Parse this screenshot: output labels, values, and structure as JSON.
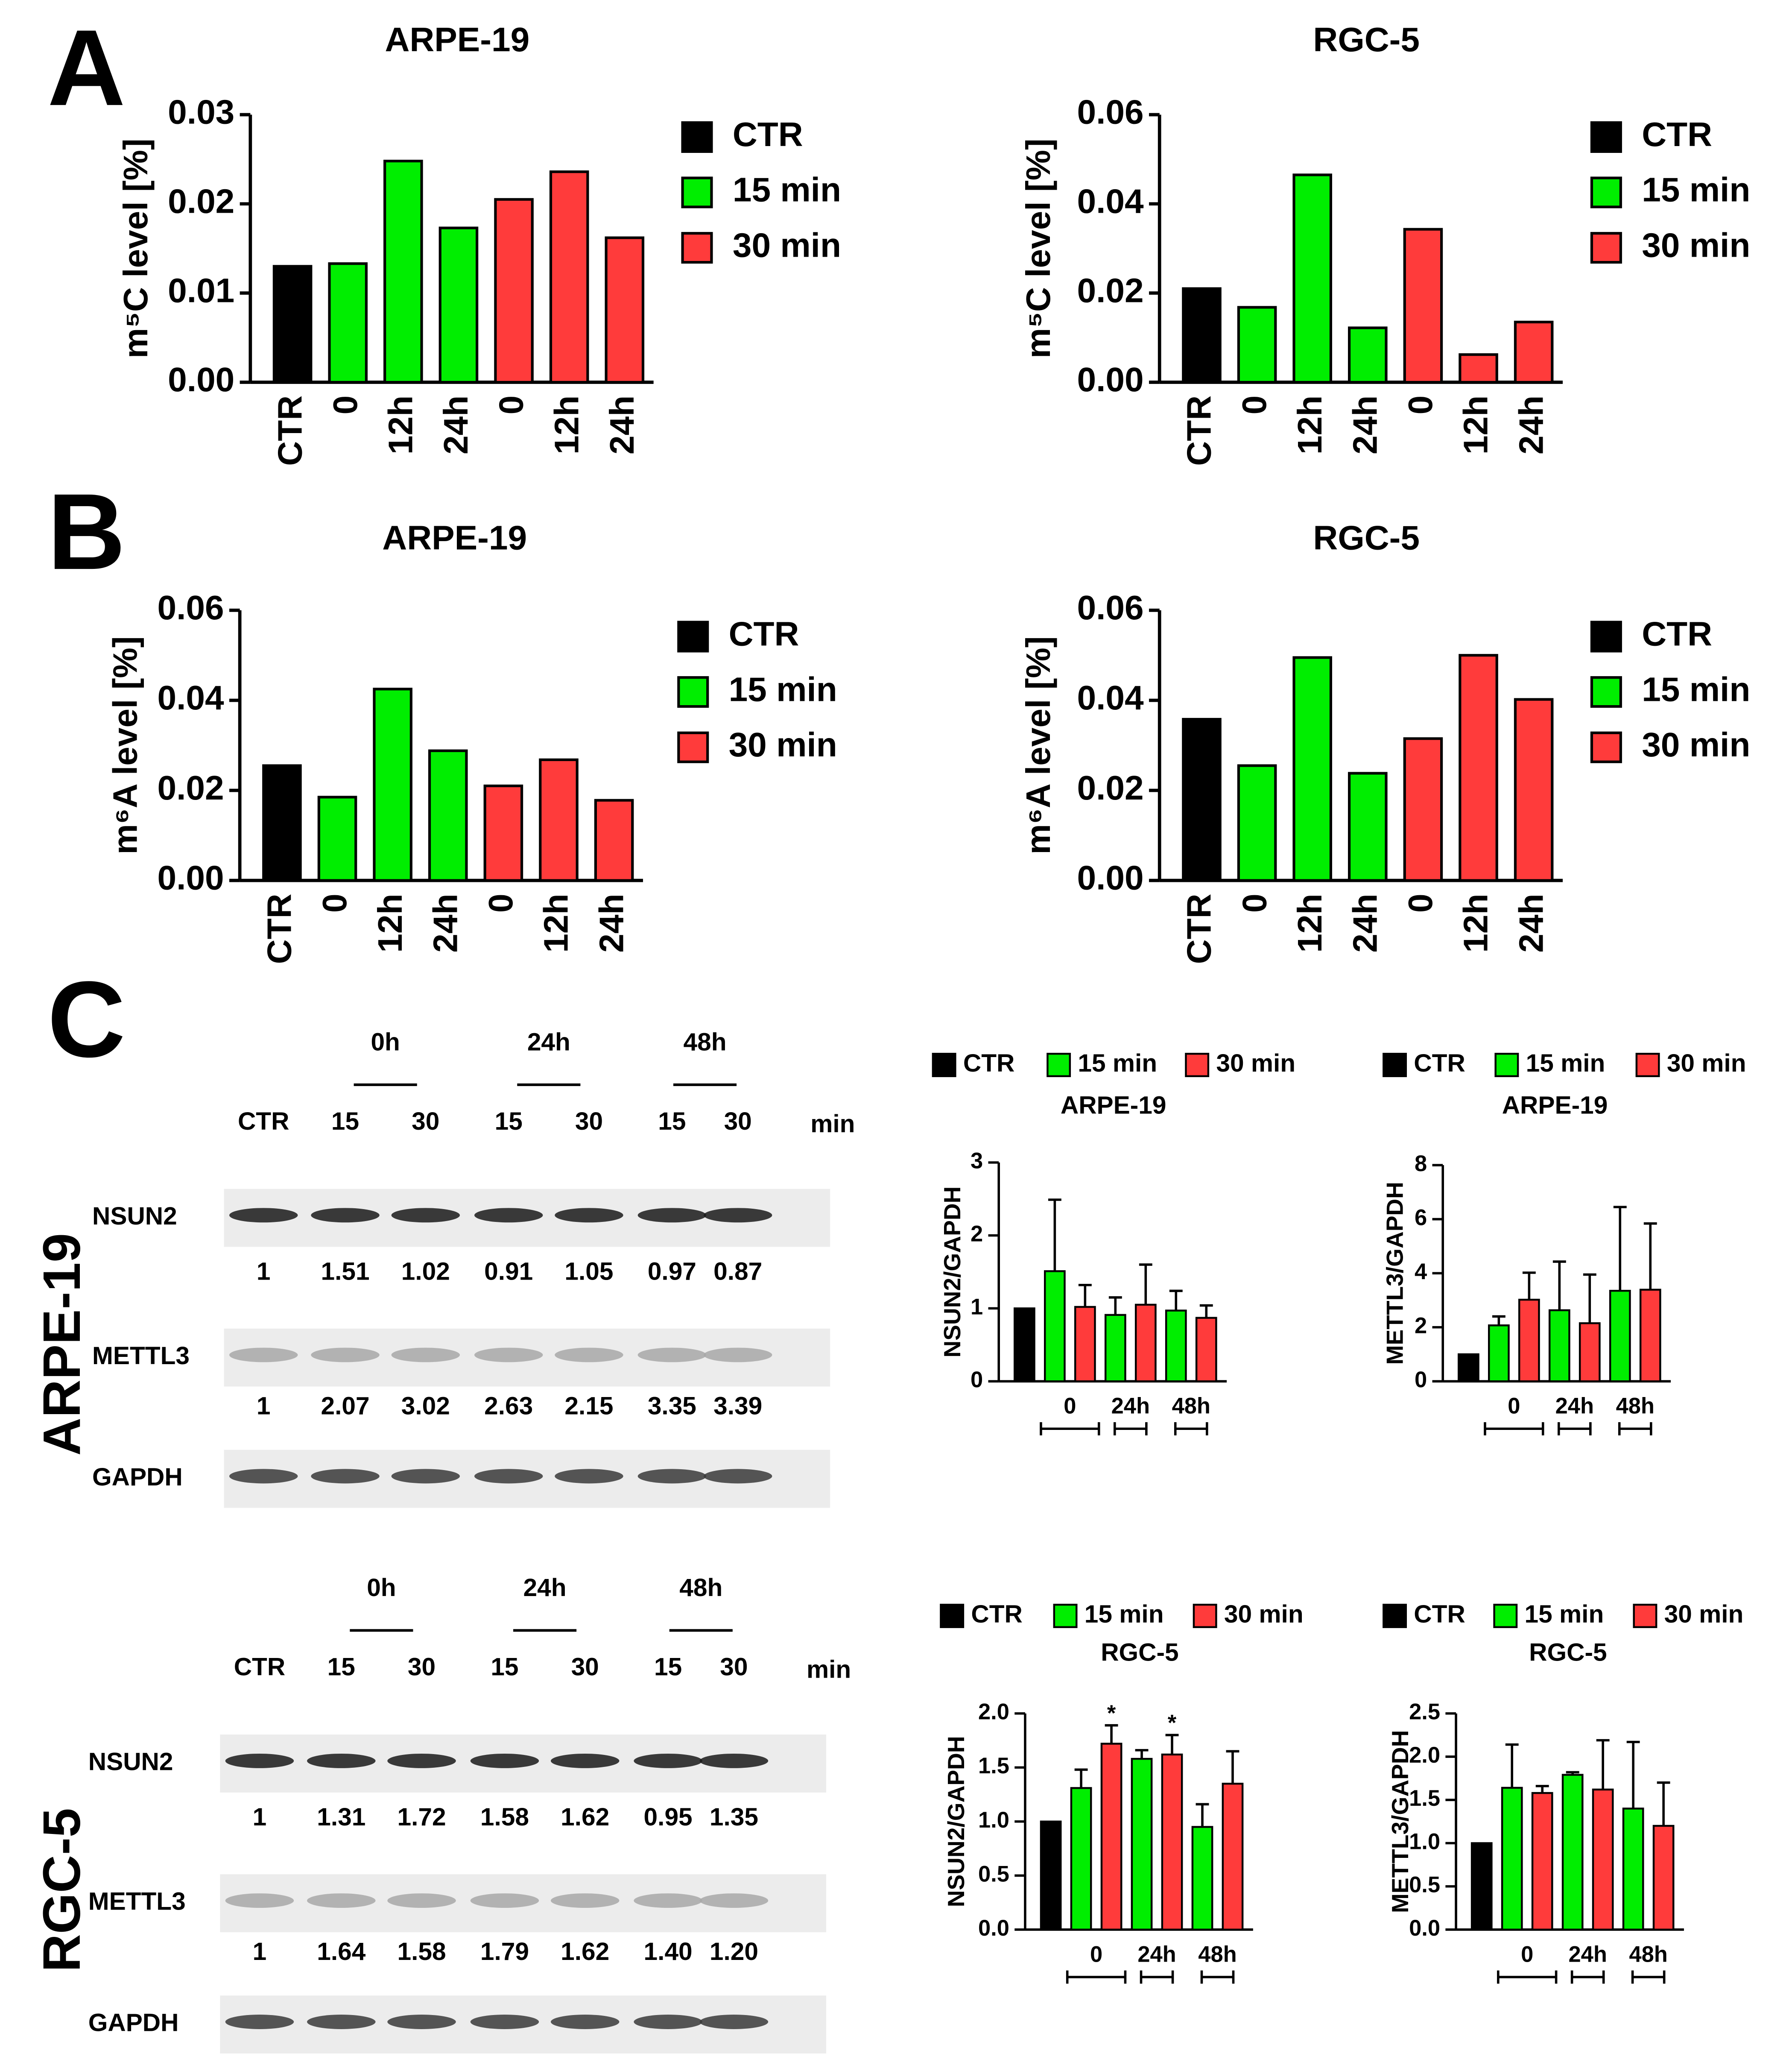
{
  "panels": [
    "A",
    "B",
    "C"
  ],
  "chart_data": [
    {
      "type": "bar",
      "title": "ARPE-19",
      "ylabel": "m⁵C level [%]",
      "categories": [
        "CTR",
        "0",
        "12h",
        "24h",
        "0",
        "12h",
        "24h"
      ],
      "series": [
        {
          "name": "CTR",
          "color": "#000000",
          "values": [
            0.013,
            null,
            null,
            null,
            null,
            null,
            null
          ]
        },
        {
          "name": "15 min",
          "color": "#00ee00",
          "values": [
            null,
            0.0133,
            0.0248,
            0.0173,
            null,
            null,
            null
          ]
        },
        {
          "name": "30 min",
          "color": "#ff3b3b",
          "values": [
            null,
            null,
            null,
            null,
            0.0205,
            0.0236,
            0.0162
          ]
        }
      ],
      "ylim": [
        0,
        0.03
      ],
      "yticks": [
        {
          "value": 0,
          "label": "0.00"
        },
        0.01,
        0.02,
        0.03
      ]
    },
    {
      "type": "bar",
      "title": "RGC-5",
      "ylabel": "m⁵C level [%]",
      "categories": [
        "CTR",
        "0",
        "12h",
        "24h",
        "0",
        "12h",
        "24h"
      ],
      "series": [
        {
          "name": "CTR",
          "color": "#000000",
          "values": [
            0.021,
            null,
            null,
            null,
            null,
            null,
            null
          ]
        },
        {
          "name": "15 min",
          "color": "#00ee00",
          "values": [
            null,
            0.0168,
            0.0465,
            0.0122,
            null,
            null,
            null
          ]
        },
        {
          "name": "30 min",
          "color": "#ff3b3b",
          "values": [
            null,
            null,
            null,
            null,
            0.0343,
            0.0062,
            0.0135
          ]
        }
      ],
      "ylim": [
        0,
        0.06
      ],
      "yticks": [
        {
          "value": 0,
          "label": "0.00"
        },
        0.02,
        0.04,
        0.06
      ]
    },
    {
      "type": "bar",
      "title": "ARPE-19",
      "ylabel": "m⁶A level [%]",
      "categories": [
        "CTR",
        "0",
        "12h",
        "24h",
        "0",
        "12h",
        "24h"
      ],
      "series": [
        {
          "name": "CTR",
          "color": "#000000",
          "values": [
            0.0255,
            null,
            null,
            null,
            null,
            null,
            null
          ]
        },
        {
          "name": "15 min",
          "color": "#00ee00",
          "values": [
            null,
            0.0185,
            0.0425,
            0.0288,
            null,
            null,
            null
          ]
        },
        {
          "name": "30 min",
          "color": "#ff3b3b",
          "values": [
            null,
            null,
            null,
            null,
            0.021,
            0.0268,
            0.0178
          ]
        }
      ],
      "ylim": [
        0,
        0.06
      ],
      "yticks": [
        {
          "value": 0,
          "label": "0.00"
        },
        0.02,
        0.04,
        0.06
      ]
    },
    {
      "type": "bar",
      "title": "RGC-5",
      "ylabel": "m⁶A level [%]",
      "categories": [
        "CTR",
        "0",
        "12h",
        "24h",
        "0",
        "12h",
        "24h"
      ],
      "series": [
        {
          "name": "CTR",
          "color": "#000000",
          "values": [
            0.0358,
            null,
            null,
            null,
            null,
            null,
            null
          ]
        },
        {
          "name": "15 min",
          "color": "#00ee00",
          "values": [
            null,
            0.0255,
            0.0495,
            0.0238,
            null,
            null,
            null
          ]
        },
        {
          "name": "30 min",
          "color": "#ff3b3b",
          "values": [
            null,
            null,
            null,
            null,
            0.0315,
            0.05,
            0.0402
          ]
        }
      ],
      "ylim": [
        0,
        0.06
      ],
      "yticks": [
        {
          "value": 0,
          "label": "0.00"
        },
        0.02,
        0.04,
        0.06
      ]
    },
    {
      "type": "errorbar",
      "title": "ARPE-19",
      "ylabel": "NSUN2/GAPDH",
      "group_labels": [
        "0",
        "24h",
        "48h"
      ],
      "series": [
        {
          "name": "CTR",
          "color": "#000000",
          "values": [
            1,
            null,
            null,
            null,
            null,
            null,
            null
          ],
          "errors": [
            null,
            null,
            null,
            null,
            null,
            null,
            null
          ]
        },
        {
          "name": "15 min",
          "color": "#00ee00",
          "values": [
            null,
            1.51,
            null,
            0.91,
            null,
            0.97,
            null
          ],
          "errors": [
            null,
            0.98,
            null,
            0.24,
            null,
            0.27,
            null
          ]
        },
        {
          "name": "30 min",
          "color": "#ff3b3b",
          "values": [
            null,
            null,
            1.02,
            null,
            1.05,
            null,
            0.87
          ],
          "errors": [
            null,
            null,
            0.3,
            null,
            0.55,
            null,
            0.17
          ]
        }
      ],
      "ylim": [
        0,
        3
      ],
      "yticks": [
        0,
        1,
        2,
        3
      ]
    },
    {
      "type": "errorbar",
      "title": "ARPE-19",
      "ylabel": "METTL3/GAPDH",
      "group_labels": [
        "0",
        "24h",
        "48h"
      ],
      "series": [
        {
          "name": "CTR",
          "color": "#000000",
          "values": [
            1,
            null,
            null,
            null,
            null,
            null,
            null
          ],
          "errors": [
            null,
            null,
            null,
            null,
            null,
            null,
            null
          ]
        },
        {
          "name": "15 min",
          "color": "#00ee00",
          "values": [
            null,
            2.07,
            null,
            2.63,
            null,
            3.35,
            null
          ],
          "errors": [
            null,
            0.33,
            null,
            1.8,
            null,
            3.1,
            null
          ]
        },
        {
          "name": "30 min",
          "color": "#ff3b3b",
          "values": [
            null,
            null,
            3.02,
            null,
            2.15,
            null,
            3.39
          ],
          "errors": [
            null,
            null,
            1.0,
            null,
            1.8,
            null,
            2.45
          ]
        }
      ],
      "ylim": [
        0,
        8
      ],
      "yticks": [
        0,
        2,
        4,
        6,
        8
      ]
    },
    {
      "type": "errorbar",
      "title": "RGC-5",
      "ylabel": "NSUN2/GAPDH",
      "group_labels": [
        "0",
        "24h",
        "48h"
      ],
      "annotations": [
        null,
        null,
        "*",
        null,
        "*",
        null,
        null
      ],
      "series": [
        {
          "name": "CTR",
          "color": "#000000",
          "values": [
            1,
            null,
            null,
            null,
            null,
            null,
            null
          ],
          "errors": [
            null,
            null,
            null,
            null,
            null,
            null,
            null
          ]
        },
        {
          "name": "15 min",
          "color": "#00ee00",
          "values": [
            null,
            1.31,
            null,
            1.58,
            null,
            0.95,
            null
          ],
          "errors": [
            null,
            0.17,
            null,
            0.08,
            null,
            0.21,
            null
          ]
        },
        {
          "name": "30 min",
          "color": "#ff3b3b",
          "values": [
            null,
            null,
            1.72,
            null,
            1.62,
            null,
            1.35
          ],
          "errors": [
            null,
            null,
            0.17,
            null,
            0.18,
            null,
            0.3
          ]
        }
      ],
      "ylim": [
        0,
        2
      ],
      "yticks": [
        {
          "value": 0,
          "label": "0.0"
        },
        0.5,
        {
          "value": 1,
          "label": "1.0"
        },
        1.5,
        {
          "value": 2,
          "label": "2.0"
        }
      ]
    },
    {
      "type": "errorbar",
      "title": "RGC-5",
      "ylabel": "METTL3/GAPDH",
      "group_labels": [
        "0",
        "24h",
        "48h"
      ],
      "series": [
        {
          "name": "CTR",
          "color": "#000000",
          "values": [
            1,
            null,
            null,
            null,
            null,
            null,
            null
          ],
          "errors": [
            null,
            null,
            null,
            null,
            null,
            null,
            null
          ]
        },
        {
          "name": "15 min",
          "color": "#00ee00",
          "values": [
            null,
            1.64,
            null,
            1.79,
            null,
            1.4,
            null
          ],
          "errors": [
            null,
            0.5,
            null,
            0.03,
            null,
            0.77,
            null
          ]
        },
        {
          "name": "30 min",
          "color": "#ff3b3b",
          "values": [
            null,
            null,
            1.58,
            null,
            1.62,
            null,
            1.2
          ],
          "errors": [
            null,
            null,
            0.08,
            null,
            0.57,
            null,
            0.5
          ]
        }
      ],
      "ylim": [
        0,
        2.5
      ],
      "yticks": [
        {
          "value": 0,
          "label": "0.0"
        },
        0.5,
        {
          "value": 1,
          "label": "1.0"
        },
        1.5,
        {
          "value": 2,
          "label": "2.0"
        },
        2.5
      ]
    }
  ],
  "blots": [
    {
      "cell": "ARPE-19",
      "timepoints": [
        "0h",
        "24h",
        "48h"
      ],
      "lanes": [
        "CTR",
        "15",
        "30",
        "15",
        "30",
        "15",
        "30"
      ],
      "unit": "min",
      "proteins": [
        {
          "name": "NSUN2",
          "ratios": [
            "1",
            "1.51",
            "1.02",
            "0.91",
            "1.05",
            "0.97",
            "0.87"
          ]
        },
        {
          "name": "METTL3",
          "ratios": [
            "1",
            "2.07",
            "3.02",
            "2.63",
            "2.15",
            "3.35",
            "3.39"
          ]
        },
        {
          "name": "GAPDH"
        }
      ]
    },
    {
      "cell": "RGC-5",
      "timepoints": [
        "0h",
        "24h",
        "48h"
      ],
      "lanes": [
        "CTR",
        "15",
        "30",
        "15",
        "30",
        "15",
        "30"
      ],
      "unit": "min",
      "proteins": [
        {
          "name": "NSUN2",
          "ratios": [
            "1",
            "1.31",
            "1.72",
            "1.58",
            "1.62",
            "0.95",
            "1.35"
          ]
        },
        {
          "name": "METTL3",
          "ratios": [
            "1",
            "1.64",
            "1.58",
            "1.79",
            "1.62",
            "1.40",
            "1.20"
          ]
        },
        {
          "name": "GAPDH"
        }
      ]
    }
  ]
}
